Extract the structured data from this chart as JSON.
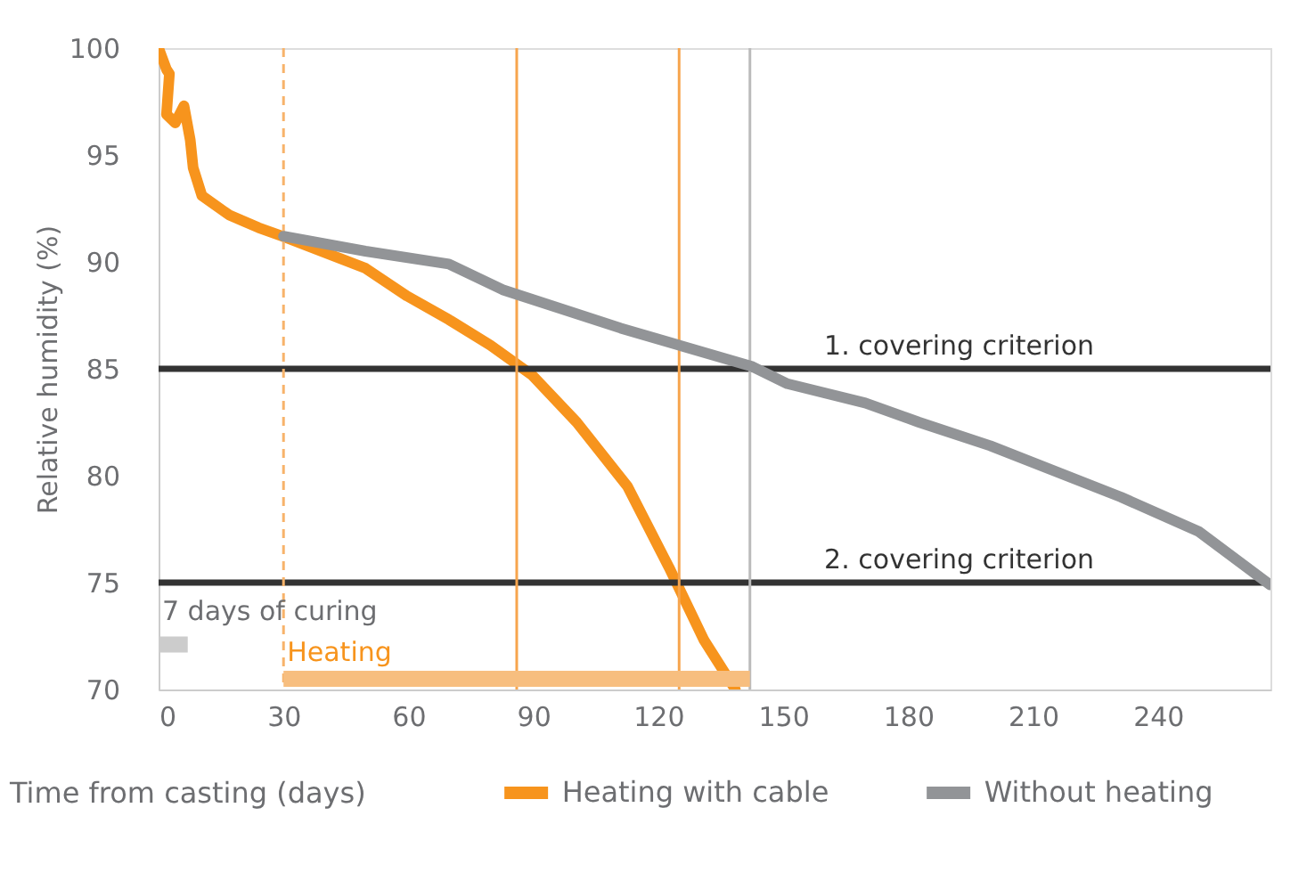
{
  "chart_data": {
    "type": "line",
    "xlabel": "Time from casting (days)",
    "ylabel": "Relative humidity (%)",
    "xlim": [
      0,
      267
    ],
    "xticks": [
      0,
      30,
      60,
      90,
      120,
      150,
      180,
      210,
      240
    ],
    "ylim": [
      70,
      100
    ],
    "yticks": [
      70,
      75,
      80,
      85,
      90,
      95,
      100
    ],
    "grid": false,
    "legend": "bottom",
    "line_style": "solid",
    "marker": "none",
    "series": [
      {
        "name": "Heating with cable",
        "color": "#f7941d",
        "x": [
          0,
          1.9,
          2.6,
          1.9,
          4,
          6.1,
          7.6,
          8.3,
          10.4,
          16.9,
          24,
          29.7,
          49.7,
          59.7,
          69.7,
          79.7,
          89.7,
          100.4,
          112.6,
          122.6,
          131,
          138.5
        ],
        "values": [
          100,
          99,
          98.8,
          96.9,
          96.5,
          97.3,
          95.7,
          94.4,
          93.1,
          92.2,
          91.6,
          91.2,
          89.7,
          88.4,
          87.3,
          86.1,
          84.7,
          82.5,
          79.5,
          75.7,
          72.3,
          70
        ]
      },
      {
        "name": "Without heating",
        "color": "#929497",
        "x": [
          30,
          49.7,
          69.7,
          82.6,
          111,
          142.6,
          151,
          169.7,
          182.6,
          199.7,
          231.1,
          249.7,
          266.9
        ],
        "values": [
          91.2,
          90.5,
          89.9,
          88.7,
          86.9,
          85.1,
          84.3,
          83.4,
          82.5,
          81.4,
          79,
          77.4,
          74.9
        ]
      },
      {
        "type": "line",
        "color": "#cccccc",
        "x": [
          0,
          7
        ],
        "values": [
          72.1,
          72.1
        ]
      },
      {
        "type": "line",
        "color": "#f7be7f",
        "x": [
          30,
          142
        ],
        "values": [
          70.5,
          70.5
        ]
      }
    ],
    "annotations": [
      {
        "text": "7 days of curing",
        "x": 0,
        "y": 72.1
      },
      {
        "text": "Heating",
        "x": 30,
        "y": 70.5
      }
    ],
    "ref_lines": [
      {
        "axis": "y",
        "value": 85,
        "label": "1. covering criterion",
        "color": "#333333"
      },
      {
        "axis": "y",
        "value": 75,
        "label": "2. covering criterion",
        "color": "#333333"
      },
      {
        "axis": "x",
        "value": 30,
        "color": "#f7b36b",
        "line_style": "dashed"
      },
      {
        "axis": "x",
        "value": 86,
        "color": "#f7a54d"
      },
      {
        "axis": "x",
        "value": 125,
        "color": "#f7a54d"
      },
      {
        "axis": "x",
        "value": 142,
        "color": "#bbbbbb"
      }
    ]
  }
}
